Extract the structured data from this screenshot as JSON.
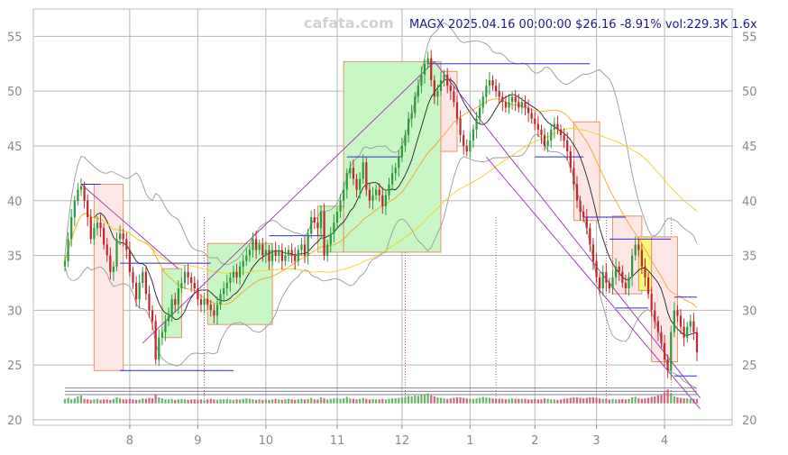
{
  "watermark": "cafata.com",
  "header": "MAGX 2025.04.16 00:00:00 $26.16 -8.91% vol:229.3K 1.6x",
  "chart_data": {
    "type": "candlestick",
    "ylim": [
      19.5,
      57.5
    ],
    "yticks": [
      20,
      25,
      30,
      35,
      40,
      45,
      50,
      55
    ],
    "xticks": [
      {
        "label": "8",
        "i": 20
      },
      {
        "label": "9",
        "i": 41
      },
      {
        "label": "10",
        "i": 62
      },
      {
        "label": "11",
        "i": 84
      },
      {
        "label": "12",
        "i": 104
      },
      {
        "label": "1",
        "i": 125
      },
      {
        "label": "2",
        "i": 145
      },
      {
        "label": "3",
        "i": 164
      },
      {
        "label": "4",
        "i": 185
      }
    ],
    "closes": [
      34.5,
      36.5,
      38.5,
      40.0,
      41.0,
      41.3,
      40.0,
      38.5,
      36.5,
      37.5,
      38.0,
      37.5,
      36.0,
      35.0,
      33.5,
      34.0,
      36.5,
      37.0,
      36.5,
      35.5,
      33.5,
      32.5,
      31.0,
      32.5,
      33.5,
      31.5,
      30.0,
      29.0,
      25.5,
      27.5,
      28.0,
      29.0,
      29.5,
      31.0,
      30.5,
      32.0,
      32.5,
      33.5,
      33.0,
      32.5,
      32.0,
      31.0,
      30.5,
      31.0,
      30.5,
      30.0,
      29.5,
      30.5,
      31.5,
      32.0,
      32.5,
      33.0,
      33.5,
      33.0,
      34.0,
      34.5,
      35.0,
      35.5,
      36.5,
      35.5,
      36.0,
      35.0,
      35.5,
      34.5,
      35.5,
      35.0,
      35.5,
      34.5,
      35.0,
      35.5,
      35.0,
      34.5,
      35.5,
      36.0,
      35.0,
      37.0,
      38.5,
      38.0,
      37.5,
      39.0,
      35.0,
      36.0,
      37.0,
      38.0,
      39.0,
      40.0,
      41.0,
      42.5,
      43.0,
      42.0,
      41.0,
      42.0,
      43.5,
      41.0,
      40.0,
      40.5,
      41.0,
      40.5,
      39.5,
      40.5,
      41.5,
      42.5,
      43.0,
      44.0,
      45.0,
      46.0,
      47.5,
      48.0,
      49.5,
      50.5,
      51.5,
      52.5,
      53.0,
      51.0,
      49.5,
      50.0,
      51.0,
      51.5,
      50.5,
      50.0,
      49.0,
      47.5,
      46.0,
      45.0,
      44.5,
      45.5,
      46.5,
      47.5,
      48.5,
      49.5,
      50.5,
      51.0,
      50.5,
      50.0,
      49.5,
      49.0,
      48.5,
      49.0,
      49.5,
      49.0,
      48.5,
      49.0,
      48.5,
      48.0,
      47.5,
      47.0,
      46.5,
      46.0,
      45.0,
      45.5,
      46.5,
      47.0,
      46.5,
      46.0,
      45.5,
      44.5,
      43.0,
      41.5,
      40.0,
      39.0,
      38.5,
      37.5,
      36.0,
      34.5,
      33.0,
      32.0,
      33.5,
      32.5,
      32.0,
      33.0,
      34.0,
      33.5,
      32.5,
      32.0,
      33.0,
      35.0,
      36.0,
      35.5,
      34.0,
      33.0,
      31.5,
      30.0,
      29.0,
      28.0,
      27.0,
      25.5,
      24.5,
      28.0,
      30.0,
      29.5,
      28.5,
      27.5,
      28.5,
      29.0,
      28.0,
      26.16
    ],
    "volumes": [
      9,
      11,
      8,
      10,
      14,
      16,
      9,
      8,
      7,
      8,
      9,
      7,
      8,
      8,
      7,
      9,
      12,
      10,
      8,
      8,
      9,
      8,
      7,
      8,
      10,
      9,
      11,
      10,
      18,
      12,
      10,
      8,
      8,
      9,
      7,
      8,
      9,
      8,
      7,
      8,
      8,
      7,
      8,
      7,
      8,
      9,
      8,
      7,
      8,
      8,
      9,
      8,
      7,
      8,
      8,
      9,
      10,
      9,
      8,
      7,
      8,
      7,
      8,
      7,
      8,
      9,
      8,
      7,
      8,
      9,
      8,
      7,
      8,
      9,
      8,
      9,
      11,
      8,
      8,
      12,
      10,
      8,
      9,
      10,
      11,
      9,
      10,
      13,
      10,
      9,
      8,
      9,
      11,
      9,
      8,
      9,
      8,
      8,
      9,
      8,
      9,
      10,
      10,
      11,
      12,
      13,
      15,
      14,
      16,
      15,
      17,
      18,
      20,
      16,
      14,
      12,
      11,
      10,
      9,
      10,
      11,
      12,
      12,
      11,
      10,
      9,
      9,
      10,
      11,
      13,
      12,
      11,
      10,
      9,
      9,
      9,
      8,
      9,
      10,
      9,
      9,
      9,
      9,
      8,
      8,
      9,
      8,
      8,
      10,
      9,
      8,
      8,
      7,
      8,
      9,
      10,
      11,
      12,
      12,
      11,
      10,
      11,
      12,
      12,
      11,
      10,
      9,
      9,
      8,
      9,
      8,
      8,
      9,
      8,
      9,
      12,
      13,
      10,
      9,
      10,
      11,
      13,
      14,
      16,
      18,
      22,
      28,
      20,
      14,
      12,
      11,
      10,
      10,
      9,
      9,
      9
    ],
    "boxes": [
      {
        "i0": 9,
        "i1": 18,
        "lo": 24.5,
        "hi": 41.5,
        "kind": "down"
      },
      {
        "i0": 30,
        "i1": 36,
        "lo": 27.5,
        "hi": 33.8,
        "kind": "up"
      },
      {
        "i0": 44,
        "i1": 64,
        "lo": 28.7,
        "hi": 36.1,
        "kind": "up"
      },
      {
        "i0": 78,
        "i1": 86,
        "lo": 35.3,
        "hi": 39.5,
        "kind": "up"
      },
      {
        "i0": 86,
        "i1": 116,
        "lo": 35.3,
        "hi": 52.7,
        "kind": "up"
      },
      {
        "i0": 116,
        "i1": 121,
        "lo": 44.5,
        "hi": 51.8,
        "kind": "down"
      },
      {
        "i0": 157,
        "i1": 165,
        "lo": 38.2,
        "hi": 47.2,
        "kind": "down"
      },
      {
        "i0": 169,
        "i1": 178,
        "lo": 31.5,
        "hi": 38.6,
        "kind": "down"
      },
      {
        "i0": 177,
        "i1": 181,
        "lo": 31.8,
        "hi": 36.7,
        "kind": "yellow"
      },
      {
        "i0": 181,
        "i1": 189,
        "lo": 25.3,
        "hi": 36.7,
        "kind": "down"
      }
    ],
    "hlines": [
      {
        "i0": 5,
        "i1": 11,
        "v": 41.5
      },
      {
        "i0": 17,
        "i1": 52,
        "v": 24.5
      },
      {
        "i0": 17,
        "i1": 45,
        "v": 34.3
      },
      {
        "i0": 63,
        "i1": 80,
        "v": 36.8
      },
      {
        "i0": 87,
        "i1": 104,
        "v": 44.0
      },
      {
        "i0": 112,
        "i1": 162,
        "v": 52.5
      },
      {
        "i0": 145,
        "i1": 160,
        "v": 44.0
      },
      {
        "i0": 168,
        "i1": 187,
        "v": 36.5
      },
      {
        "i0": 160,
        "i1": 173,
        "v": 38.5
      },
      {
        "i0": 170,
        "i1": 180,
        "v": 30.2
      },
      {
        "i0": 188,
        "i1": 195,
        "v": 24.0
      },
      {
        "i0": 188,
        "i1": 195,
        "v": 31.2
      }
    ],
    "diags": [
      {
        "i0": 5,
        "v0": 41.5,
        "i1": 35,
        "v1": 33.8
      },
      {
        "i0": 24,
        "v0": 27.0,
        "i1": 114,
        "v1": 52.7
      },
      {
        "i0": 114,
        "v0": 52.7,
        "i1": 196,
        "v1": 22.0
      },
      {
        "i0": 130,
        "v0": 44.0,
        "i1": 196,
        "v1": 21.0
      }
    ],
    "vlines": [
      43,
      105,
      133,
      167,
      187
    ]
  }
}
